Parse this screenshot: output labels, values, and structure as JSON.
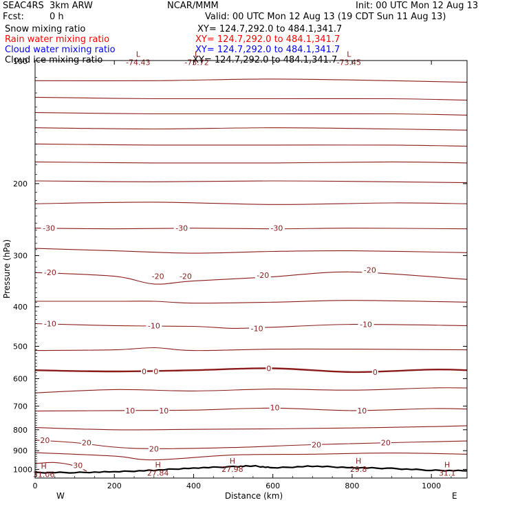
{
  "header": {
    "model": "SEAC4RS  3km ARW",
    "center": "NCAR/MMM",
    "init": "Init: 00 UTC Mon 12 Aug 13",
    "fcst_label": "Fcst:",
    "fcst_value": "0 h",
    "valid": "Valid: 00 UTC Mon 12 Aug 13 (19 CDT Sun 11 Aug 13)"
  },
  "legend": [
    {
      "name": "Snow mixing ratio",
      "xy": "XY= 124.7,292.0 to 484.1,341.7",
      "color": "#000000"
    },
    {
      "name": "Rain water mixing ratio",
      "xy": "XY= 124.7,292.0 to 484.1,341.7",
      "color": "#ff0000"
    },
    {
      "name": "Cloud water mixing ratio",
      "xy": "XY= 124.7,292.0 to 484.1,341.7",
      "color": "#0000ff"
    },
    {
      "name": "Cloud ice mixing ratio",
      "xy": "XY= 124.7,292.0 to 484.1,341.7",
      "color": "#000000"
    }
  ],
  "chart_data": {
    "type": "line",
    "title": "",
    "xlabel": "Distance (km)",
    "ylabel": "Pressure (hPa)",
    "xlim": [
      0,
      1090
    ],
    "ylim": [
      100,
      1050
    ],
    "y_scale": "log",
    "x_ticks": [
      0,
      200,
      400,
      600,
      800,
      1000
    ],
    "x_tick_labels": [
      "0",
      "200",
      "400",
      "600",
      "800",
      "1000"
    ],
    "y_ticks": [
      200,
      300,
      400,
      500,
      600,
      700,
      800,
      900,
      1000
    ],
    "y_tick_labels": [
      "200",
      "300",
      "400",
      "500",
      "600",
      "700",
      "800",
      "900",
      "1000"
    ],
    "y_label_100": "100",
    "direction_labels": {
      "west": "W",
      "east": "E"
    },
    "contour_color": "#8b1a1a",
    "temperature_contours": [
      {
        "level": -70,
        "x": [
          0,
          300,
          600,
          900,
          1090
        ],
        "p": [
          112,
          112,
          111,
          112,
          113
        ]
      },
      {
        "level": -65,
        "x": [
          0,
          300,
          600,
          900,
          1090
        ],
        "p": [
          123,
          124,
          124,
          124,
          125
        ]
      },
      {
        "level": -60,
        "x": [
          0,
          300,
          600,
          900,
          1090
        ],
        "p": [
          134,
          135,
          135,
          135,
          136
        ]
      },
      {
        "level": -55,
        "x": [
          0,
          300,
          600,
          900,
          1090
        ],
        "p": [
          146,
          147,
          146,
          147,
          148
        ]
      },
      {
        "level": -50,
        "x": [
          0,
          300,
          600,
          900,
          1090
        ],
        "p": [
          160,
          161,
          161,
          161,
          162
        ]
      },
      {
        "level": -45,
        "x": [
          0,
          300,
          600,
          900,
          1090
        ],
        "p": [
          177,
          178,
          178,
          177,
          178
        ]
      },
      {
        "level": -40,
        "x": [
          0,
          300,
          600,
          900,
          1090
        ],
        "p": [
          197,
          198,
          197,
          198,
          199
        ]
      },
      {
        "level": -35,
        "x": [
          0,
          300,
          600,
          900,
          1090
        ],
        "p": [
          224,
          222,
          225,
          223,
          224
        ]
      },
      {
        "level": -30,
        "x": [
          0,
          200,
          400,
          600,
          800,
          1090
        ],
        "p": [
          257,
          258,
          257,
          258,
          257,
          258
        ]
      },
      {
        "level": -25,
        "x": [
          0,
          200,
          400,
          600,
          800,
          1090
        ],
        "p": [
          288,
          292,
          296,
          293,
          292,
          295
        ]
      },
      {
        "level": -20,
        "x": [
          0,
          200,
          300,
          400,
          600,
          800,
          1090
        ],
        "p": [
          330,
          337,
          352,
          346,
          338,
          329,
          343
        ]
      },
      {
        "level": -15,
        "x": [
          0,
          200,
          300,
          400,
          600,
          800,
          1090
        ],
        "p": [
          388,
          388,
          388,
          392,
          390,
          386,
          390
        ]
      },
      {
        "level": -10,
        "x": [
          0,
          200,
          400,
          500,
          600,
          800,
          1090
        ],
        "p": [
          440,
          445,
          447,
          452,
          449,
          442,
          445
        ]
      },
      {
        "level": -5,
        "x": [
          0,
          200,
          300,
          400,
          600,
          800,
          1090
        ],
        "p": [
          512,
          510,
          504,
          512,
          508,
          508,
          510
        ]
      },
      {
        "level": 0,
        "x": [
          0,
          200,
          400,
          600,
          800,
          1000,
          1090
        ],
        "p": [
          572,
          576,
          572,
          566,
          578,
          570,
          572
        ]
      },
      {
        "level": 5,
        "x": [
          0,
          200,
          400,
          600,
          800,
          1000,
          1090
        ],
        "p": [
          650,
          638,
          643,
          636,
          640,
          632,
          632
        ]
      },
      {
        "level": 10,
        "x": [
          0,
          200,
          400,
          600,
          800,
          1000,
          1090
        ],
        "p": [
          720,
          718,
          716,
          708,
          718,
          710,
          712
        ]
      },
      {
        "level": 15,
        "x": [
          0,
          200,
          400,
          600,
          800,
          1000,
          1090
        ],
        "p": [
          790,
          800,
          798,
          796,
          792,
          786,
          782
        ]
      },
      {
        "level": 20,
        "x": [
          0,
          100,
          200,
          300,
          500,
          700,
          900,
          1090
        ],
        "p": [
          848,
          860,
          882,
          890,
          884,
          870,
          860,
          852
        ]
      },
      {
        "level": 25,
        "x": [
          0,
          200,
          300,
          500,
          700,
          900,
          1090
        ],
        "p": [
          910,
          928,
          948,
          922,
          918,
          912,
          918
        ]
      },
      {
        "level": 30,
        "x": [
          0,
          50,
          100,
          130
        ],
        "p": [
          968,
          962,
          980,
          1010
        ]
      }
    ],
    "surface": {
      "x": [
        0,
        100,
        200,
        300,
        400,
        500,
        550,
        600,
        700,
        800,
        900,
        1000,
        1090
      ],
      "p": [
        1018,
        1018,
        1014,
        1005,
        992,
        985,
        980,
        992,
        982,
        990,
        995,
        1005,
        1008
      ]
    },
    "contour_labels": [
      {
        "text": "-30",
        "x": 35,
        "p": 257
      },
      {
        "text": "-30",
        "x": 370,
        "p": 257
      },
      {
        "text": "-30",
        "x": 610,
        "p": 257
      },
      {
        "text": "-20",
        "x": 38,
        "p": 330
      },
      {
        "text": "-20",
        "x": 310,
        "p": 337
      },
      {
        "text": "-20",
        "x": 380,
        "p": 337
      },
      {
        "text": "-20",
        "x": 575,
        "p": 335
      },
      {
        "text": "-20",
        "x": 845,
        "p": 325
      },
      {
        "text": "-10",
        "x": 38,
        "p": 440
      },
      {
        "text": "-10",
        "x": 300,
        "p": 445
      },
      {
        "text": "-10",
        "x": 560,
        "p": 452
      },
      {
        "text": "-10",
        "x": 835,
        "p": 442
      },
      {
        "text": "0",
        "x": 275,
        "p": 576
      },
      {
        "text": "0",
        "x": 305,
        "p": 576
      },
      {
        "text": "0",
        "x": 590,
        "p": 566
      },
      {
        "text": "0",
        "x": 858,
        "p": 578
      },
      {
        "text": "10",
        "x": 240,
        "p": 718
      },
      {
        "text": "10",
        "x": 325,
        "p": 718
      },
      {
        "text": "10",
        "x": 605,
        "p": 706
      },
      {
        "text": "10",
        "x": 825,
        "p": 718
      },
      {
        "text": "20",
        "x": 25,
        "p": 848
      },
      {
        "text": "20",
        "x": 130,
        "p": 860
      },
      {
        "text": "20",
        "x": 300,
        "p": 890
      },
      {
        "text": "20",
        "x": 710,
        "p": 870
      },
      {
        "text": "20",
        "x": 885,
        "p": 860
      },
      {
        "text": "30",
        "x": 108,
        "p": 978
      }
    ],
    "extrema": [
      {
        "kind": "L",
        "value": "-74.43",
        "x": 260,
        "p": 99
      },
      {
        "kind": "L",
        "value": "-73.72",
        "x": 408,
        "p": 99
      },
      {
        "kind": "L",
        "value": "-73.45",
        "x": 792,
        "p": 99
      },
      {
        "kind": "H",
        "value": "31.06",
        "x": 22,
        "p": 1012
      },
      {
        "kind": "H",
        "value": "27.84",
        "x": 310,
        "p": 1004
      },
      {
        "kind": "H",
        "value": "27.98",
        "x": 498,
        "p": 984
      },
      {
        "kind": "H",
        "value": "29.8",
        "x": 816,
        "p": 984
      },
      {
        "kind": "H",
        "value": "31.1",
        "x": 1040,
        "p": 1004
      }
    ]
  }
}
